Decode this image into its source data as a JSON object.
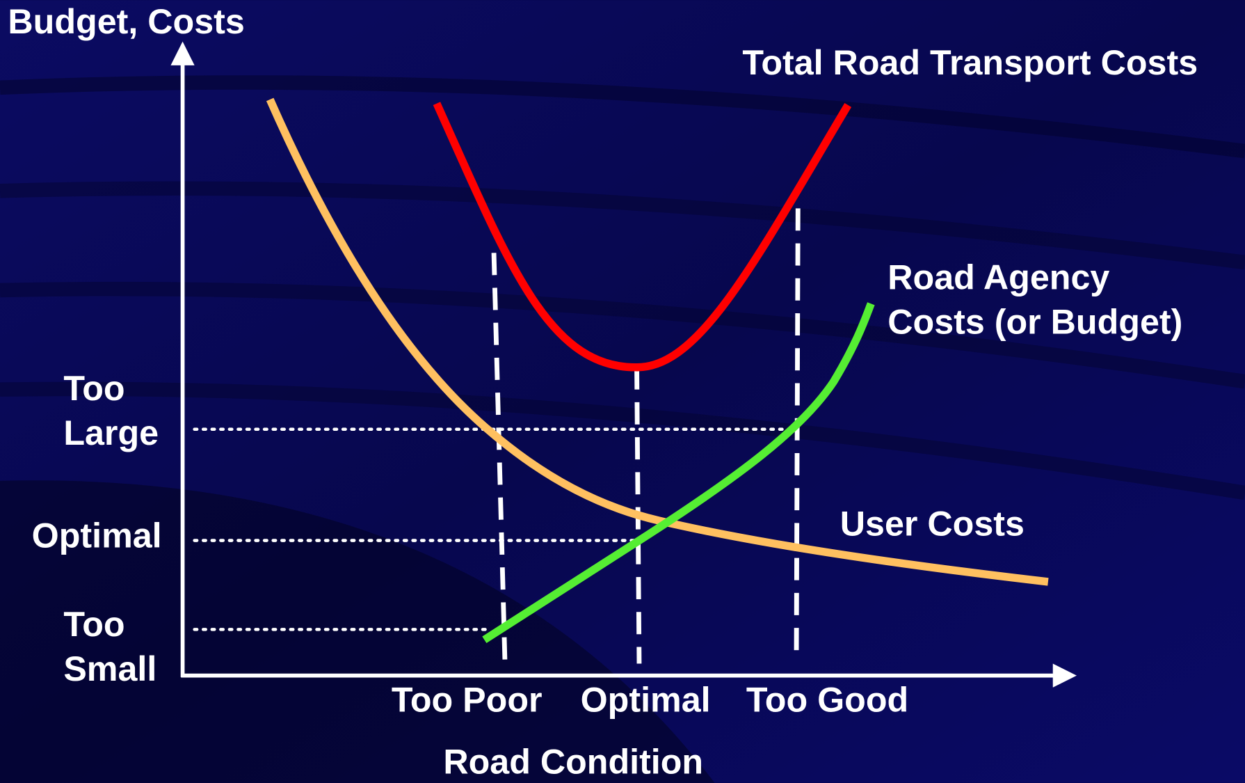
{
  "axes": {
    "y_label": "Budget, Costs",
    "x_label": "Road Condition"
  },
  "curves": [
    {
      "label": [
        "Total Road Transport Costs"
      ]
    },
    {
      "label": [
        "Road Agency",
        "Costs (or Budget)"
      ]
    },
    {
      "label": [
        "User Costs"
      ]
    }
  ],
  "y_levels": [
    [
      "Too",
      "Large"
    ],
    [
      "Optimal"
    ],
    [
      "Too",
      "Small"
    ]
  ],
  "x_levels": [
    "Too Poor",
    "Optimal",
    "Too Good"
  ]
}
